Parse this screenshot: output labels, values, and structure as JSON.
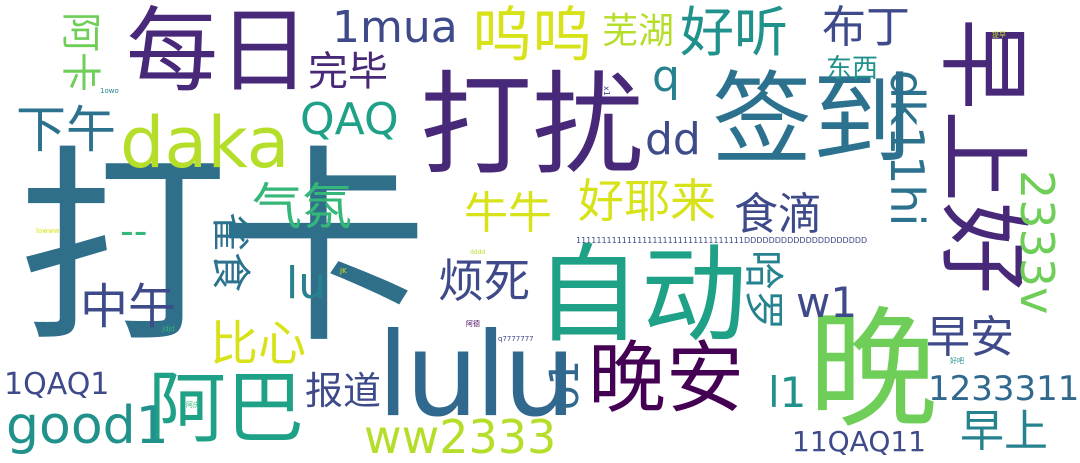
{
  "colors": {
    "c1": "#2f6f8a",
    "c2": "#482878",
    "c3": "#3e4a89",
    "c4": "#26828e",
    "c5": "#1fa187",
    "c6": "#35b779",
    "c7": "#6ece58",
    "c8": "#b5de2b",
    "c9": "#d8e219",
    "c10": "#fde725",
    "c11": "#440154",
    "c12": "#31688e",
    "c13": "#2c728e",
    "c14": "#21918c"
  },
  "words": {
    "w_daka_daka": "打卡",
    "w_meiri": "每日",
    "w_darao": "打扰",
    "w_qiandao": "签到",
    "w_zaoshanghao": "早上好",
    "w_wan": "晚",
    "w_zidong": "自动",
    "w_lulu": "lulu",
    "w_wanan": "晚安",
    "w_aba": "阿巴",
    "w_daka": "daka",
    "w_1mua": "1mua",
    "w_wuwu": "呜呜",
    "w_haoting": "好听",
    "w_buding": "布丁",
    "w_wuhu": "芜湖",
    "w_wanbi": "完毕",
    "w_aka": "阿卡",
    "w_qaq": "QAQ",
    "w_xiawu": "下午",
    "w_q": "q",
    "w_dongxi": "东西",
    "w_dk11hi": "dk11hi",
    "w_dd": "dd",
    "w_haoyelai": "好耶来",
    "w_shidi": "食滴",
    "w_qifen": "气氛",
    "w_niuniu": "牛牛",
    "w_2333v": "2333v",
    "w_queshi": "雀食",
    "w_minus": "--",
    "w_lu": "lu",
    "w_fansi": "烦死",
    "w_haluo": "哈罗",
    "w_w1": "w1",
    "w_zhongwu": "中午",
    "w_bixin": "比心",
    "w_zaoan": "早安",
    "w_1qaq1": "1QAQ1",
    "w_good1": "good1",
    "w_baodao": "报道",
    "w_o1": "o1",
    "w_l1": "l1",
    "w_1233311l": "1233311l",
    "w_zaoshang": "早上",
    "w_ww2333": "ww2333",
    "w_11qaq11": "11QAQ11",
    "w_1111": "111111111111111111111111111111111DDDDDDDDDDDDDDDDDDDD",
    "w_1owo": "1owo",
    "w_x1": "x1",
    "w_lowww": "lowww",
    "w_ddd": "dddd",
    "w_jk": "JK",
    "w_jdjd": "jdjd",
    "w_q7777777": "q7777777",
    "w_nisheng": "阿德",
    "w_haoxi": "好吧",
    "w_tiny1": "提早",
    "w_tiny2": "阿庆"
  }
}
